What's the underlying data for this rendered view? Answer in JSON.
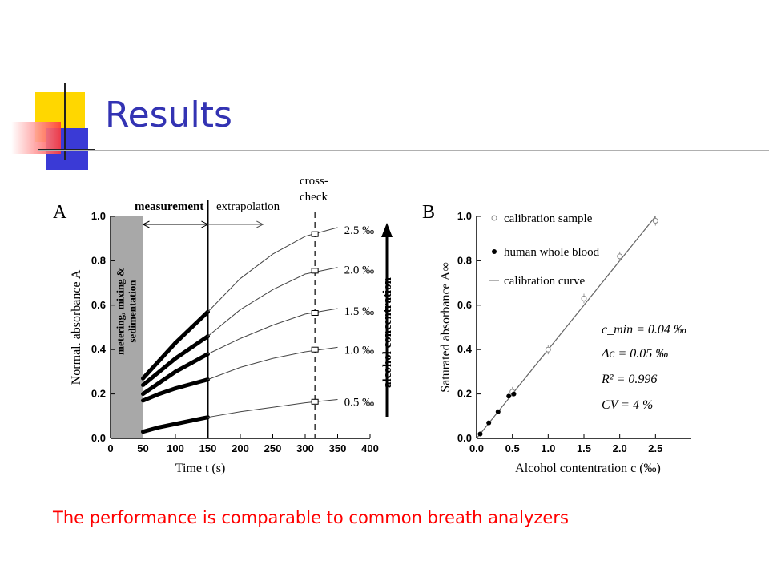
{
  "slide": {
    "title": "Results",
    "caption": "The performance is comparable to common breath analyzers",
    "accent_colors": {
      "title": "#3333b3",
      "caption": "#ff0000",
      "yellow": "#ffd700",
      "blue": "#3a3ad6",
      "red": "#ff3b3b"
    }
  },
  "chart_data": [
    {
      "type": "line",
      "panel_label": "A",
      "xlabel": "Time t (s)",
      "ylabel": "Normal. absorbance A",
      "xlim": [
        0,
        400
      ],
      "ylim": [
        0,
        1.0
      ],
      "x_ticks": [
        "0",
        "50",
        "100",
        "150",
        "200",
        "250",
        "300",
        "350",
        "400"
      ],
      "y_ticks": [
        "0.0",
        "0.2",
        "0.4",
        "0.6",
        "0.8",
        "1.0"
      ],
      "shaded_region_label": "metering, mixing & sedimentation",
      "shaded_region_x": [
        0,
        50
      ],
      "annotations": [
        "measurement",
        "extrapolation",
        "cross-check",
        "alcohol concentration"
      ],
      "measurement_end_x": 150,
      "crosscheck_x": 315,
      "series": [
        {
          "name": "0.5 ‰",
          "measured": [
            [
              50,
              0.03
            ],
            [
              75,
              0.05
            ],
            [
              100,
              0.065
            ],
            [
              125,
              0.08
            ],
            [
              150,
              0.095
            ]
          ],
          "fit": [
            [
              150,
              0.095
            ],
            [
              200,
              0.12
            ],
            [
              250,
              0.14
            ],
            [
              300,
              0.16
            ],
            [
              350,
              0.175
            ]
          ],
          "check": [
            315,
            0.165
          ]
        },
        {
          "name": "1.0 ‰",
          "measured": [
            [
              50,
              0.17
            ],
            [
              75,
              0.2
            ],
            [
              100,
              0.225
            ],
            [
              125,
              0.245
            ],
            [
              150,
              0.265
            ]
          ],
          "fit": [
            [
              150,
              0.265
            ],
            [
              200,
              0.32
            ],
            [
              250,
              0.36
            ],
            [
              300,
              0.39
            ],
            [
              350,
              0.41
            ]
          ],
          "check": [
            315,
            0.4
          ]
        },
        {
          "name": "1.5 ‰",
          "measured": [
            [
              50,
              0.2
            ],
            [
              75,
              0.25
            ],
            [
              100,
              0.3
            ],
            [
              125,
              0.34
            ],
            [
              150,
              0.38
            ]
          ],
          "fit": [
            [
              150,
              0.38
            ],
            [
              200,
              0.45
            ],
            [
              250,
              0.51
            ],
            [
              300,
              0.56
            ],
            [
              350,
              0.585
            ]
          ],
          "check": [
            315,
            0.565
          ]
        },
        {
          "name": "2.0 ‰",
          "measured": [
            [
              50,
              0.24
            ],
            [
              75,
              0.3
            ],
            [
              100,
              0.36
            ],
            [
              125,
              0.41
            ],
            [
              150,
              0.46
            ]
          ],
          "fit": [
            [
              150,
              0.46
            ],
            [
              200,
              0.58
            ],
            [
              250,
              0.67
            ],
            [
              300,
              0.74
            ],
            [
              350,
              0.77
            ]
          ],
          "check": [
            315,
            0.755
          ]
        },
        {
          "name": "2.5 ‰",
          "measured": [
            [
              50,
              0.27
            ],
            [
              75,
              0.35
            ],
            [
              100,
              0.43
            ],
            [
              125,
              0.5
            ],
            [
              150,
              0.57
            ]
          ],
          "fit": [
            [
              150,
              0.57
            ],
            [
              200,
              0.72
            ],
            [
              250,
              0.83
            ],
            [
              300,
              0.91
            ],
            [
              350,
              0.95
            ]
          ],
          "check": [
            315,
            0.92
          ]
        }
      ]
    },
    {
      "type": "scatter",
      "panel_label": "B",
      "xlabel": "Alcohol contentration c (‰)",
      "ylabel": "Saturated absorbance A∞",
      "xlim": [
        0,
        3.0
      ],
      "ylim": [
        0,
        1.0
      ],
      "x_ticks": [
        "0.0",
        "0.5",
        "1.0",
        "1.5",
        "2.0",
        "2.5"
      ],
      "y_ticks": [
        "0.0",
        "0.2",
        "0.4",
        "0.6",
        "0.8",
        "1.0"
      ],
      "legend": [
        "calibration sample",
        "human whole blood",
        "calibration curve"
      ],
      "legend_placement": "top-left",
      "stats": [
        "c_min = 0.04 ‰",
        "Δc = 0.05 ‰",
        "R² = 0.996",
        "CV = 4 %"
      ],
      "series": [
        {
          "name": "calibration sample",
          "points": [
            [
              0.5,
              0.21
            ],
            [
              1.0,
              0.4
            ],
            [
              1.5,
              0.63
            ],
            [
              2.0,
              0.82
            ],
            [
              2.5,
              0.98
            ]
          ]
        },
        {
          "name": "human whole blood",
          "points": [
            [
              0.05,
              0.02
            ],
            [
              0.17,
              0.07
            ],
            [
              0.3,
              0.12
            ],
            [
              0.45,
              0.19
            ],
            [
              0.52,
              0.2
            ]
          ]
        },
        {
          "name": "calibration curve",
          "line": [
            [
              0.0,
              0.0
            ],
            [
              2.5,
              1.0
            ]
          ]
        }
      ]
    }
  ]
}
